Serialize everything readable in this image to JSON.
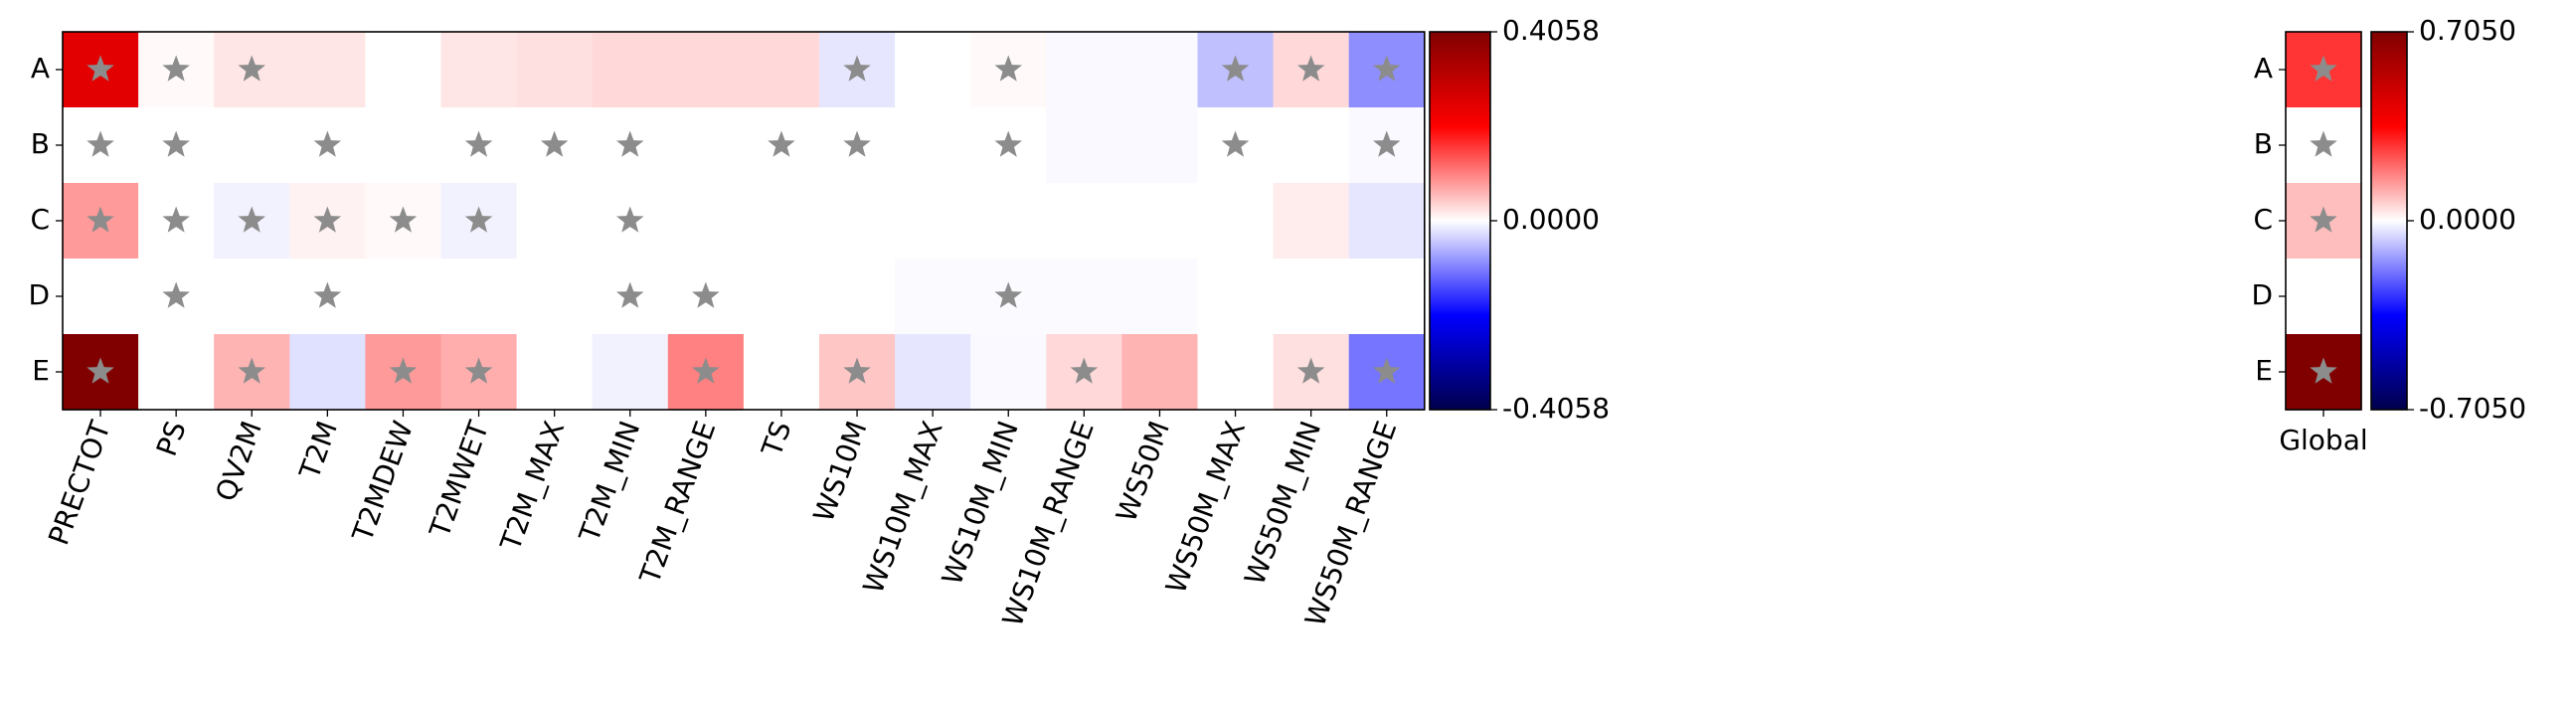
{
  "chart_data": [
    {
      "type": "heatmap",
      "rows": [
        "A",
        "B",
        "C",
        "D",
        "E"
      ],
      "columns": [
        "PRECTOT",
        "PS",
        "QV2M",
        "T2M",
        "T2MDEW",
        "T2MWET",
        "T2M_MAX",
        "T2M_MIN",
        "T2M_RANGE",
        "TS",
        "WS10M",
        "WS10M_MAX",
        "WS10M_MIN",
        "WS10M_RANGE",
        "WS50M",
        "WS50M_MAX",
        "WS50M_MIN",
        "WS50M_RANGE"
      ],
      "values": [
        [
          0.25,
          0.005,
          0.02,
          0.02,
          0.0,
          0.02,
          0.025,
          0.03,
          0.03,
          0.03,
          -0.02,
          0.0,
          0.005,
          -0.005,
          -0.005,
          -0.05,
          0.03,
          -0.09
        ],
        [
          0.0,
          0.0,
          0.0,
          0.0,
          0.0,
          0.0,
          0.0,
          0.0,
          0.0,
          0.0,
          0.0,
          0.0,
          0.0,
          -0.005,
          -0.005,
          0.0,
          0.0,
          -0.005
        ],
        [
          0.08,
          0.0,
          -0.01,
          0.01,
          0.005,
          -0.01,
          0.0,
          0.0,
          0.0,
          0.0,
          0.0,
          0.0,
          0.0,
          0.0,
          0.0,
          0.0,
          0.015,
          -0.02
        ],
        [
          0.0,
          0.0,
          0.0,
          0.0,
          0.0,
          0.0,
          0.0,
          0.0,
          0.0,
          0.0,
          0.0,
          -0.003,
          -0.003,
          -0.003,
          -0.003,
          0.0,
          0.0,
          0.0
        ],
        [
          0.4058,
          0.0,
          0.06,
          -0.025,
          0.08,
          0.065,
          0.0,
          -0.01,
          0.1,
          0.0,
          0.045,
          -0.02,
          -0.005,
          0.03,
          0.06,
          0.0,
          0.025,
          -0.11
        ]
      ],
      "significant": [
        [
          true,
          true,
          true,
          false,
          false,
          false,
          false,
          false,
          false,
          false,
          true,
          false,
          true,
          false,
          false,
          true,
          true,
          true
        ],
        [
          true,
          true,
          false,
          true,
          false,
          true,
          true,
          true,
          false,
          true,
          true,
          false,
          true,
          false,
          false,
          true,
          false,
          true
        ],
        [
          true,
          true,
          true,
          true,
          true,
          true,
          false,
          true,
          false,
          false,
          false,
          false,
          false,
          false,
          false,
          false,
          false,
          false
        ],
        [
          false,
          true,
          false,
          true,
          false,
          false,
          false,
          true,
          true,
          false,
          false,
          false,
          true,
          false,
          false,
          false,
          false,
          false
        ],
        [
          true,
          false,
          true,
          false,
          true,
          true,
          false,
          false,
          true,
          false,
          true,
          false,
          false,
          true,
          false,
          false,
          true,
          true
        ]
      ],
      "colormap": "seismic",
      "colorbar": {
        "min": -0.4058,
        "max": 0.4058,
        "ticks": [
          "0.4058",
          "0.0000",
          "-0.4058"
        ]
      },
      "marker_color": "#8c8c8c"
    },
    {
      "type": "heatmap",
      "rows": [
        "A",
        "B",
        "C",
        "D",
        "E"
      ],
      "columns": [
        "Global"
      ],
      "values": [
        [
          0.28
        ],
        [
          0.0
        ],
        [
          0.09
        ],
        [
          0.0
        ],
        [
          0.705
        ]
      ],
      "significant": [
        [
          true
        ],
        [
          true
        ],
        [
          true
        ],
        [
          false
        ],
        [
          true
        ]
      ],
      "colormap": "seismic",
      "colorbar": {
        "min": -0.705,
        "max": 0.705,
        "ticks": [
          "0.7050",
          "0.0000",
          "-0.7050"
        ]
      },
      "marker_color": "#8c8c8c"
    }
  ]
}
